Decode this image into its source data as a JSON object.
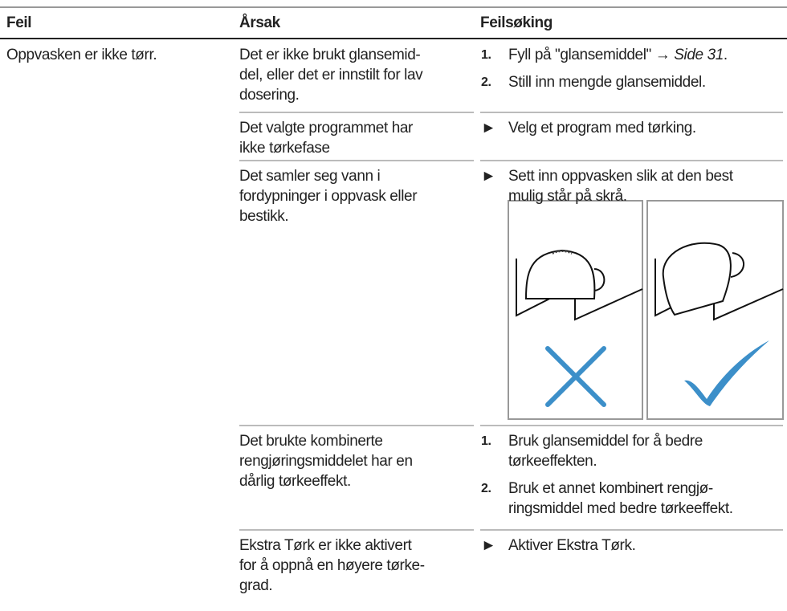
{
  "header": {
    "columns": [
      "Feil",
      "Årsak",
      "Feilsøking"
    ]
  },
  "table": {
    "fault": "Oppvasken er ikke tørr.",
    "rows": [
      {
        "cause": [
          "Det er ikke brukt glansemid-",
          "del, eller det er innstilt for lav",
          "dosering."
        ],
        "remedy": [
          {
            "marker": "1.",
            "lines": [
              "Fyll på \"glansemiddel\""
            ],
            "link": "→",
            "ref": "Side 31",
            "end": "."
          },
          {
            "marker": "2.",
            "lines": [
              "Still inn mengde glansemiddel."
            ]
          }
        ]
      },
      {
        "cause": [
          "Det valgte programmet har",
          "ikke tørkefase"
        ],
        "remedy": [
          {
            "marker": "►",
            "lines": [
              "Velg et program med tørking."
            ]
          }
        ]
      },
      {
        "cause": [
          "Det samler seg vann i",
          "fordypninger i oppvask eller",
          "bestikk."
        ],
        "remedy": [
          {
            "marker": "►",
            "lines": [
              "Sett inn oppvasken slik at den best",
              "mulig står på skrå."
            ]
          }
        ]
      },
      {
        "cause": [
          "Det brukte kombinerte",
          "rengjøringsmiddelet har en",
          "dårlig tørkeeffekt."
        ],
        "remedy": [
          {
            "marker": "1.",
            "lines": [
              "Bruk glansemiddel for å bedre",
              "tørkeeffekten."
            ]
          },
          {
            "marker": "2.",
            "lines": [
              "Bruk et annet kombinert rengjø-",
              "ringsmiddel med bedre tørkeeffekt."
            ]
          }
        ]
      },
      {
        "cause": [
          "Ekstra Tørk er ikke aktivert",
          "for å oppnå en høyere tørke-",
          "grad."
        ],
        "remedy": [
          {
            "marker": "►",
            "lines": [
              "Aktiver Ekstra Tørk."
            ]
          }
        ]
      }
    ]
  }
}
